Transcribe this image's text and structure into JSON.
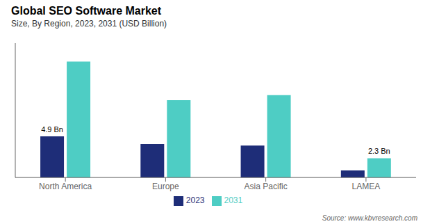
{
  "chart_data": {
    "type": "bar",
    "title": "Global SEO Software Market",
    "subtitle": "Size, By Region, 2023, 2031 (USD Billion)",
    "categories": [
      "North America",
      "Europe",
      "Asia Pacific",
      "LAMEA"
    ],
    "series": [
      {
        "name": "2023",
        "color": "#1e2d78",
        "values": [
          4.9,
          4.0,
          3.8,
          0.85
        ]
      },
      {
        "name": "2031",
        "color": "#4ecdc4",
        "values": [
          13.8,
          9.2,
          9.8,
          2.3
        ]
      }
    ],
    "annotations": [
      {
        "text": "4.9 Bn",
        "series": "2023",
        "category": "North America"
      },
      {
        "text": "2.3 Bn",
        "series": "2031",
        "category": "LAMEA"
      }
    ],
    "source": "Source: www.kbvresearch.com",
    "ylim": [
      0,
      16
    ],
    "legend": "bottom",
    "tick_labels": "x",
    "grid": false
  }
}
